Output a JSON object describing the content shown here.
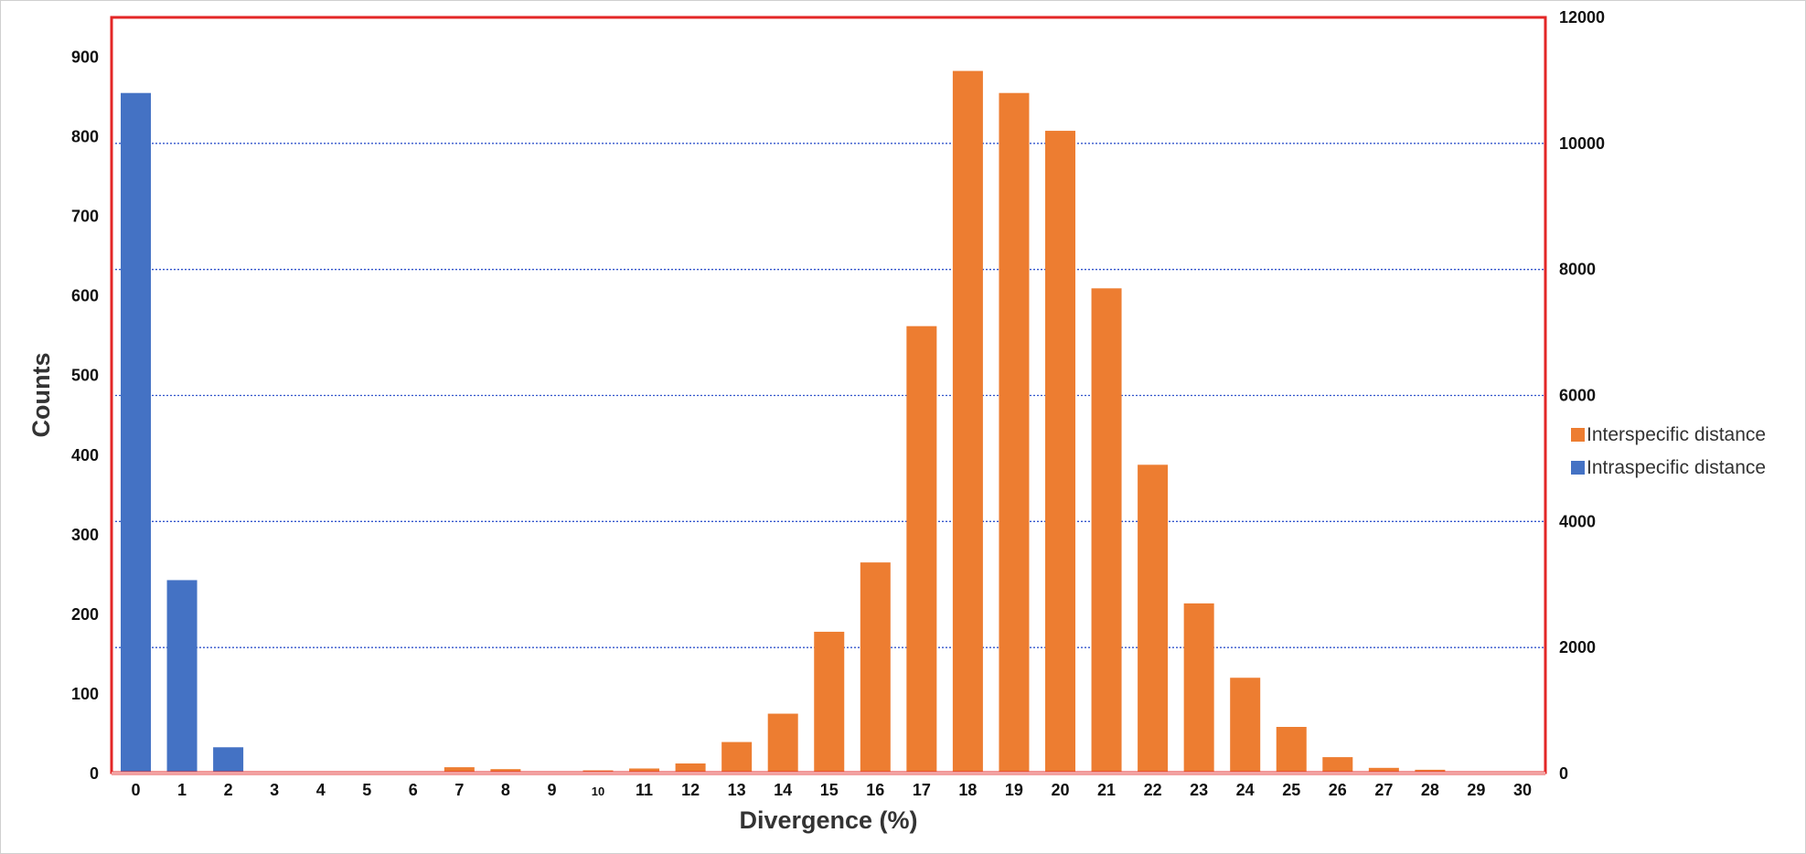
{
  "chart_data": {
    "type": "bar",
    "title": "",
    "xlabel": "Divergence (%)",
    "ylabel": "Counts",
    "categories": [
      "0",
      "1",
      "2",
      "3",
      "4",
      "5",
      "6",
      "7",
      "8",
      "9",
      "10",
      "11",
      "12",
      "13",
      "14",
      "15",
      "16",
      "17",
      "18",
      "19",
      "20",
      "21",
      "22",
      "23",
      "24",
      "25",
      "26",
      "27",
      "28",
      "29",
      "30"
    ],
    "ylim_left": [
      0,
      900
    ],
    "yticks_left": [
      "0",
      "100",
      "200",
      "300",
      "400",
      "500",
      "600",
      "700",
      "800",
      "900"
    ],
    "ylim_right": [
      0,
      12000
    ],
    "yticks_right": [
      "0",
      "2000",
      "4000",
      "6000",
      "8000",
      "10000",
      "12000"
    ],
    "series": [
      {
        "name": "Interspecific distance",
        "axis": "right",
        "color": "#ED7D31",
        "values": [
          0,
          0,
          0,
          0,
          0,
          0,
          0,
          100,
          70,
          30,
          50,
          80,
          160,
          500,
          950,
          2250,
          3350,
          7100,
          11150,
          10800,
          10200,
          7700,
          4900,
          2700,
          1520,
          740,
          260,
          90,
          60,
          30,
          20
        ]
      },
      {
        "name": "Intraspecific distance",
        "axis": "left",
        "color": "#4472C4",
        "values": [
          855,
          243,
          33,
          0,
          0,
          0,
          0,
          0,
          0,
          0,
          0,
          0,
          0,
          0,
          0,
          0,
          0,
          0,
          0,
          0,
          0,
          0,
          0,
          0,
          0,
          0,
          0,
          0,
          0,
          0,
          0
        ]
      }
    ],
    "legend_position": "right",
    "gridlines": "horizontal dotted blue",
    "frame_color": "#E32626"
  }
}
